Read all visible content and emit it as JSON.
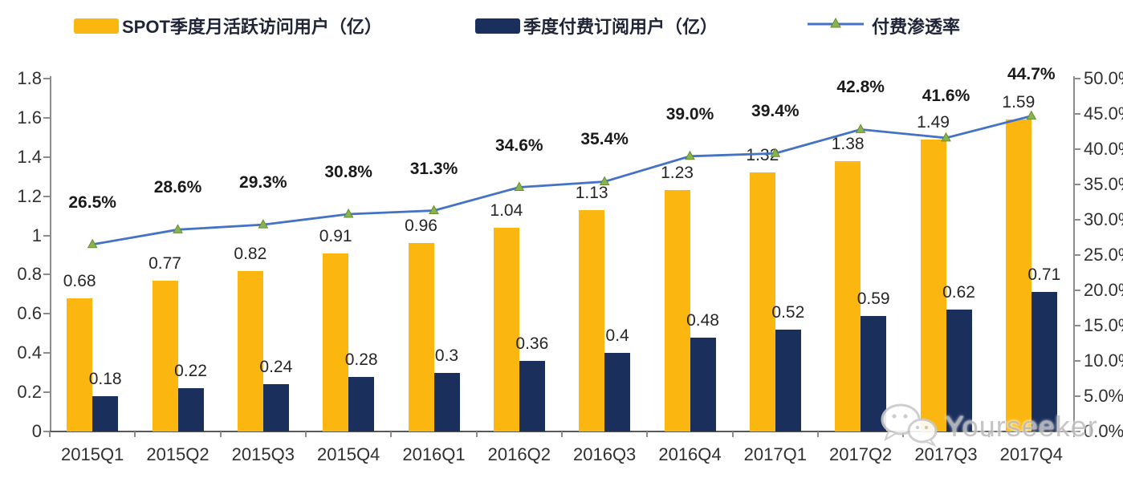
{
  "chart_data": {
    "type": "bar",
    "title": "",
    "legend_position": "top",
    "grid": false,
    "categories": [
      "2015Q1",
      "2015Q2",
      "2015Q3",
      "2015Q4",
      "2016Q1",
      "2016Q2",
      "2016Q3",
      "2016Q4",
      "2017Q1",
      "2017Q2",
      "2017Q3",
      "2017Q4"
    ],
    "series": [
      {
        "name": "SPOT季度月活跃访问用户（亿）",
        "type": "bar",
        "axis": "left",
        "color": "#FBB70F",
        "values": [
          0.68,
          0.77,
          0.82,
          0.91,
          0.96,
          1.04,
          1.13,
          1.23,
          1.32,
          1.38,
          1.49,
          1.59
        ],
        "labels": [
          "0.68",
          "0.77",
          "0.82",
          "0.91",
          "0.96",
          "1.04",
          "1.13",
          "1.23",
          "1.32",
          "1.38",
          "1.49",
          "1.59"
        ]
      },
      {
        "name": "季度付费订阅用户（亿）",
        "type": "bar",
        "axis": "left",
        "color": "#1B2F5C",
        "values": [
          0.18,
          0.22,
          0.24,
          0.28,
          0.3,
          0.36,
          0.4,
          0.48,
          0.52,
          0.59,
          0.62,
          0.71
        ],
        "labels": [
          "0.18",
          "0.22",
          "0.24",
          "0.28",
          "0.3",
          "0.36",
          "0.4",
          "0.48",
          "0.52",
          "0.59",
          "0.62",
          "0.71"
        ]
      },
      {
        "name": "付费渗透率",
        "type": "line",
        "axis": "right",
        "color": "#4472C4",
        "marker": "triangle",
        "marker_fill": "#8AB34C",
        "marker_stroke": "#638f34",
        "values": [
          26.5,
          28.6,
          29.3,
          30.8,
          31.3,
          34.6,
          35.4,
          39.0,
          39.4,
          42.8,
          41.6,
          44.7
        ],
        "labels": [
          "26.5%",
          "28.6%",
          "29.3%",
          "30.8%",
          "31.3%",
          "34.6%",
          "35.4%",
          "39.0%",
          "39.4%",
          "42.8%",
          "41.6%",
          "44.7%"
        ]
      }
    ],
    "left_axis": {
      "min": 0,
      "max": 1.8,
      "step": 0.2,
      "ticks": [
        "0",
        "0.2",
        "0.4",
        "0.6",
        "0.8",
        "1",
        "1.2",
        "1.4",
        "1.6",
        "1.8"
      ]
    },
    "right_axis": {
      "min": 0,
      "max": 50,
      "step": 5,
      "ticks": [
        "0.0%",
        "5.0%",
        "10.0%",
        "15.0%",
        "20.0%",
        "25.0%",
        "30.0%",
        "35.0%",
        "40.0%",
        "45.0%",
        "50.0%"
      ]
    }
  },
  "watermark": {
    "text": "Yourseeker",
    "icon": "wechat-icon"
  }
}
